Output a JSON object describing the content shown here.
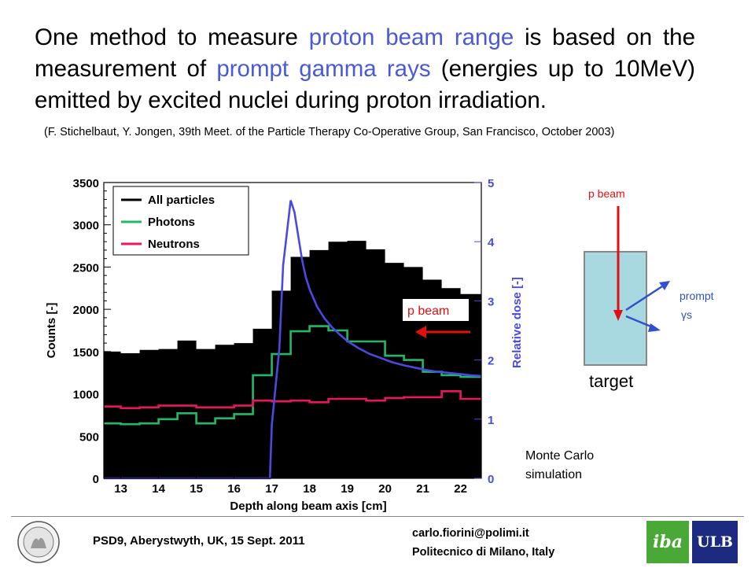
{
  "headline": {
    "part1": "One method to measure ",
    "highlight1": "proton beam range",
    "part2": " is based on the measurement of ",
    "highlight2": "prompt gamma rays",
    "part3": " (energies up to 10MeV) emitted by excited nuclei during proton irradiation."
  },
  "citation": "(F. Stichelbaut, Y. Jongen, 39th Meet. of the Particle Therapy Co-Operative Group, San Francisco, October 2003)",
  "chart_data": {
    "type": "line",
    "xlabel": "Depth along beam axis [cm]",
    "ylabel": "Counts [-]",
    "y2label": "Relative dose [-]",
    "xlim": [
      12.55,
      22.55
    ],
    "ylim": [
      0,
      3500
    ],
    "y2lim": [
      0,
      5
    ],
    "xticks": [
      13,
      14,
      15,
      16,
      17,
      18,
      19,
      20,
      21,
      22
    ],
    "yticks": [
      0,
      500,
      1000,
      1500,
      2000,
      2500,
      3000,
      3500
    ],
    "y2ticks": [
      0,
      1,
      2,
      3,
      4,
      5
    ],
    "legend_position": "top-left",
    "histogram_bins": {
      "edges": [
        12.55,
        13.0,
        13.5,
        14.0,
        14.5,
        15.0,
        15.5,
        16.0,
        16.5,
        17.0,
        17.5,
        18.0,
        18.5,
        19.0,
        19.5,
        20.0,
        20.5,
        21.0,
        21.5,
        22.0,
        22.55
      ],
      "series": [
        {
          "name": "All particles",
          "color": "#000000",
          "values": [
            1500,
            1480,
            1520,
            1530,
            1630,
            1530,
            1580,
            1600,
            1770,
            2220,
            2620,
            2700,
            2800,
            2810,
            2710,
            2550,
            2500,
            2350,
            2250,
            2180
          ]
        },
        {
          "name": "Photons",
          "color": "#22b86b",
          "values": [
            650,
            640,
            650,
            700,
            770,
            650,
            710,
            760,
            1220,
            1470,
            1740,
            1800,
            1750,
            1620,
            1620,
            1450,
            1400,
            1260,
            1220,
            1200
          ]
        },
        {
          "name": "Neutrons",
          "color": "#e8175d",
          "values": [
            850,
            830,
            840,
            860,
            860,
            840,
            840,
            860,
            920,
            910,
            920,
            900,
            940,
            940,
            920,
            950,
            960,
            960,
            1030,
            940
          ]
        }
      ]
    },
    "dose_curve": {
      "name": "Relative dose",
      "color": "#4a4ae0",
      "axis": "right",
      "x": [
        12.55,
        16.95,
        17.0,
        17.2,
        17.3,
        17.5,
        17.6,
        17.7,
        17.8,
        17.9,
        18.0,
        18.2,
        18.4,
        18.6,
        18.8,
        19.0,
        19.3,
        19.6,
        19.9,
        20.2,
        20.5,
        20.8,
        21.1,
        21.4,
        21.7,
        22.0,
        22.3,
        22.55
      ],
      "y": [
        0.0,
        0.0,
        0.9,
        2.2,
        3.6,
        4.7,
        4.5,
        4.1,
        3.7,
        3.4,
        3.2,
        2.9,
        2.7,
        2.55,
        2.43,
        2.32,
        2.2,
        2.1,
        2.03,
        1.96,
        1.91,
        1.87,
        1.83,
        1.8,
        1.78,
        1.76,
        1.74,
        1.73
      ]
    },
    "annotation": "p beam"
  },
  "diagram": {
    "beam_label": "p beam",
    "gamma_label_1": "prompt",
    "gamma_label_2": "γs",
    "target_label": "target",
    "target_color": "#a9d9e0",
    "beam_color": "#e01010",
    "gamma_color": "#3050d0"
  },
  "mc_note_line1": "Monte Carlo",
  "mc_note_line2": "simulation",
  "footer": {
    "conference": "PSD9, Aberystwyth, UK, 15 Sept. 2011",
    "email": "carlo.fiorini@polimi.it",
    "affiliation": "Politecnico di Milano, Italy",
    "logo_iba": "iba",
    "logo_ulb": "ULB"
  }
}
